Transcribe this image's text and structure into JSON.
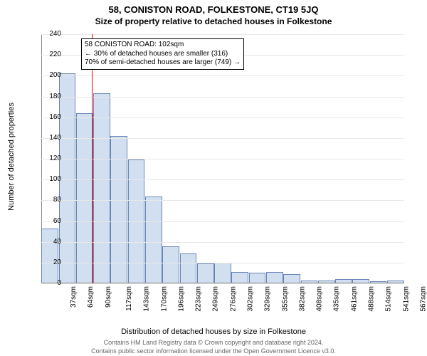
{
  "header": {
    "title": "58, CONISTON ROAD, FOLKESTONE, CT19 5JQ",
    "subtitle": "Size of property relative to detached houses in Folkestone"
  },
  "axes": {
    "y_label": "Number of detached properties",
    "x_label": "Distribution of detached houses by size in Folkestone",
    "ylim_max": 240,
    "ytick_step": 20
  },
  "chart": {
    "type": "histogram",
    "bar_fill": "#d2dff0",
    "bar_border": "#6a86b5",
    "grid_color": "#e8e8e8",
    "background": "#ffffff",
    "marker_color": "#ff0000",
    "marker_x_value": 102,
    "categories": [
      "37sqm",
      "64sqm",
      "90sqm",
      "117sqm",
      "143sqm",
      "170sqm",
      "196sqm",
      "223sqm",
      "249sqm",
      "276sqm",
      "302sqm",
      "329sqm",
      "355sqm",
      "382sqm",
      "408sqm",
      "435sqm",
      "461sqm",
      "488sqm",
      "514sqm",
      "541sqm",
      "567sqm"
    ],
    "values": [
      53,
      202,
      164,
      183,
      142,
      119,
      84,
      36,
      29,
      19,
      20,
      11,
      10,
      11,
      9,
      3,
      3,
      4,
      4,
      2,
      3
    ]
  },
  "infobox": {
    "line1": "58 CONISTON ROAD: 102sqm",
    "line2": "← 30% of detached houses are smaller (316)",
    "line3": "70% of semi-detached houses are larger (749) →"
  },
  "footer": {
    "line1": "Contains HM Land Registry data © Crown copyright and database right 2024.",
    "line2": "Contains public sector information licensed under the Open Government Licence v3.0."
  }
}
